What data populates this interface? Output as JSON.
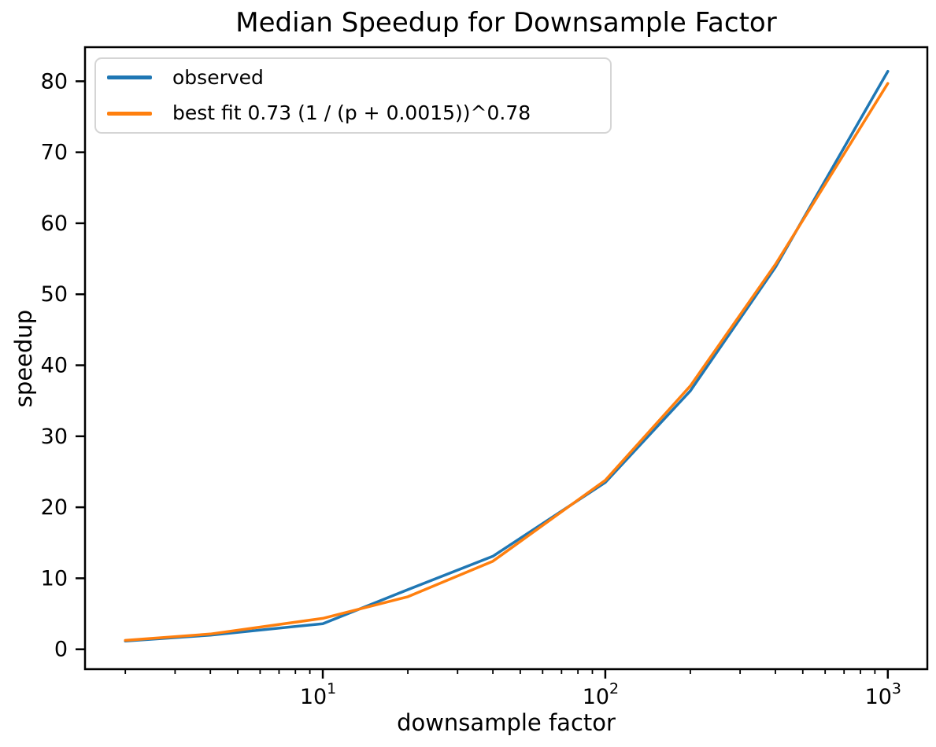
{
  "chart_data": {
    "type": "line",
    "title": "Median Speedup for Downsample Factor",
    "xlabel": "downsample factor",
    "ylabel": "speedup",
    "x_scale": "log",
    "y_scale": "linear",
    "xlim": [
      1.44,
      1380
    ],
    "ylim": [
      -2.8,
      84.8
    ],
    "grid": false,
    "legend_position": "upper left",
    "x": [
      2,
      4,
      10,
      20,
      40,
      100,
      200,
      400,
      1000
    ],
    "series": [
      {
        "name": "observed",
        "color": "#1f77b4",
        "values": [
          1.15,
          2.0,
          3.6,
          8.4,
          13.1,
          23.5,
          36.4,
          53.8,
          81.4
        ]
      },
      {
        "name": "best fit 0.73 (1 / (p + 0.0015))^0.78",
        "color": "#ff7f0e",
        "values": [
          1.25,
          2.15,
          4.35,
          7.4,
          12.4,
          23.8,
          37.1,
          54.2,
          79.7
        ]
      }
    ],
    "x_major_ticks": [
      {
        "value": 10,
        "base": "10",
        "exp": "1"
      },
      {
        "value": 100,
        "base": "10",
        "exp": "2"
      },
      {
        "value": 1000,
        "base": "10",
        "exp": "3"
      }
    ],
    "x_minor_ticks": [
      2,
      3,
      4,
      5,
      6,
      7,
      8,
      9,
      20,
      30,
      40,
      50,
      60,
      70,
      80,
      90,
      200,
      300,
      400,
      500,
      600,
      700,
      800,
      900
    ],
    "y_ticks": [
      0,
      10,
      20,
      30,
      40,
      50,
      60,
      70,
      80
    ]
  },
  "colors": {
    "background": "#ffffff",
    "text": "#000000",
    "spine": "#000000",
    "legend_border": "#d5d5d5"
  }
}
